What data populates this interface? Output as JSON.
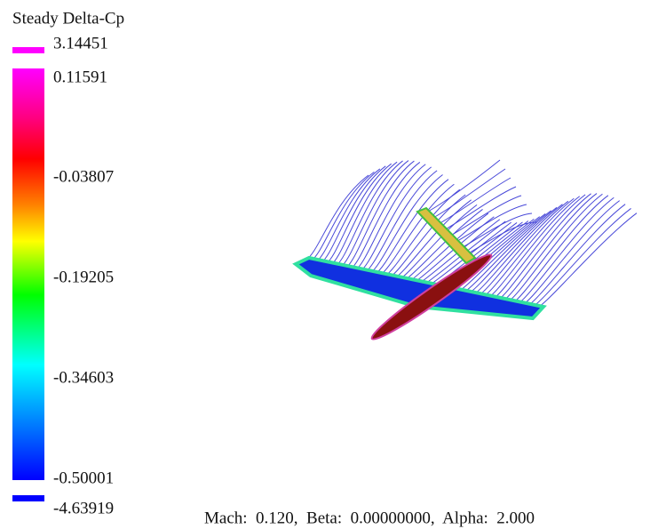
{
  "legend": {
    "title": "Steady Delta-Cp",
    "labels": [
      "3.14451",
      "0.11591",
      "-0.03807",
      "-0.19205",
      "-0.34603",
      "-0.50001",
      "-4.63919"
    ]
  },
  "footer": "Mach:  0.120,  Beta:  0.00000000,  Alpha:  2.000"
}
